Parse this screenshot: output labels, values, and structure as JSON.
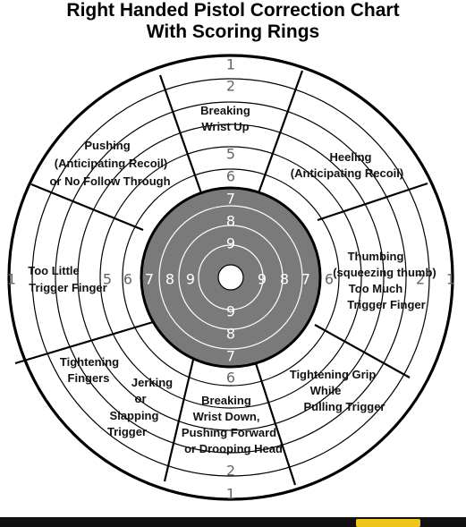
{
  "title": {
    "line1": "Right Handed Pistol Correction Chart",
    "line2": "With Scoring Rings"
  },
  "ring_numbers": {
    "top": [
      "1",
      "2",
      "5",
      "6",
      "7",
      "8",
      "9"
    ],
    "bottom": [
      "9",
      "8",
      "7",
      "6",
      "2",
      "1"
    ],
    "left": [
      "1",
      "5",
      "6",
      "7",
      "8",
      "9"
    ],
    "right": [
      "9",
      "8",
      "7",
      "6",
      "2",
      "1"
    ]
  },
  "corrections": {
    "breaking_wrist_up": [
      "Breaking",
      "Wrist Up"
    ],
    "heeling": [
      "Heeling",
      "(Anticipating Recoil)"
    ],
    "thumbing": [
      "Thumbing",
      "(squeezing thumb)",
      "Too Much",
      "Trigger Finger"
    ],
    "tightening_grip": [
      "Tightening Grip",
      "While",
      "Pulling Trigger"
    ],
    "breaking_wrist_down": [
      "Breaking",
      "Wrist Down,",
      "Pushing Forward",
      "or Drooping Head"
    ],
    "jerking": [
      "Jerking",
      "or",
      "Slapping",
      "Trigger"
    ],
    "tightening_fingers": [
      "Tightening",
      "Fingers"
    ],
    "too_little": [
      "Too Little",
      "Trigger Finger"
    ],
    "pushing": [
      "Pushing",
      "(Anticipating Recoil)",
      "or No Follow Through"
    ]
  },
  "colors": {
    "bull": "#7a7a7a",
    "lines": "#000000",
    "background": "#ffffff"
  }
}
